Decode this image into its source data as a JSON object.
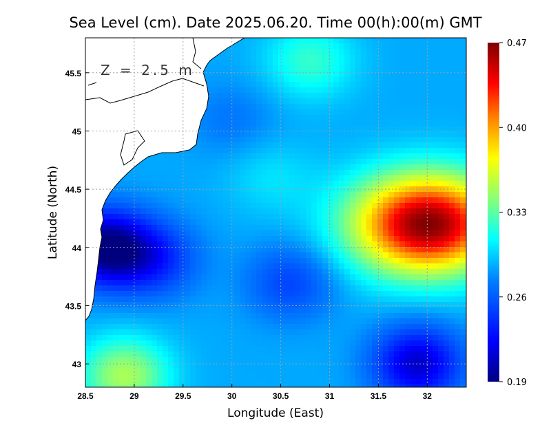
{
  "chart_data": {
    "type": "heatmap",
    "title": "Sea Level (cm). Date 2025.06.20. Time 00(h):00(m) GMT",
    "xlabel": "Longitude (East)",
    "ylabel": "Latitude (North)",
    "annotation": "Z = 2.5 m",
    "xlim": [
      28.5,
      32.4
    ],
    "ylim": [
      42.8,
      45.8
    ],
    "x_ticks": [
      "28.5",
      "29",
      "29.5",
      "30",
      "30.5",
      "31",
      "31.5",
      "32"
    ],
    "x_tick_values": [
      28.5,
      29,
      29.5,
      30,
      30.5,
      31,
      31.5,
      32
    ],
    "y_ticks": [
      "43",
      "43.5",
      "44",
      "44.5",
      "45",
      "45.5"
    ],
    "y_tick_values": [
      43,
      43.5,
      44,
      44.5,
      45,
      45.5
    ],
    "grid": true,
    "colorbar": {
      "min": 0.19,
      "max": 0.47,
      "labels": [
        "0.47",
        "0.40",
        "0.33",
        "0.26",
        "0.19"
      ],
      "values": [
        0.47,
        0.4,
        0.33,
        0.26,
        0.19
      ],
      "colors": [
        "#00007f",
        "#0000ff",
        "#0080ff",
        "#00ffff",
        "#80ff80",
        "#ffff00",
        "#ff8000",
        "#ff0000",
        "#7f0000"
      ]
    },
    "field_features": [
      {
        "lon": 32.0,
        "lat": 44.2,
        "value": 0.47,
        "note": "maximum"
      },
      {
        "lon": 28.7,
        "lat": 44.0,
        "value": 0.19,
        "note": "coastal minimum"
      },
      {
        "lon": 31.9,
        "lat": 43.0,
        "value": 0.21
      },
      {
        "lon": 29.2,
        "lat": 43.9,
        "value": 0.24
      },
      {
        "lon": 30.4,
        "lat": 44.6,
        "value": 0.3
      },
      {
        "lon": 30.8,
        "lat": 45.6,
        "value": 0.32
      },
      {
        "lon": 28.9,
        "lat": 42.9,
        "value": 0.35
      },
      {
        "lon": 30.6,
        "lat": 43.7,
        "value": 0.25
      },
      {
        "lon": 30.0,
        "lat": 45.1,
        "value": 0.27
      }
    ]
  }
}
